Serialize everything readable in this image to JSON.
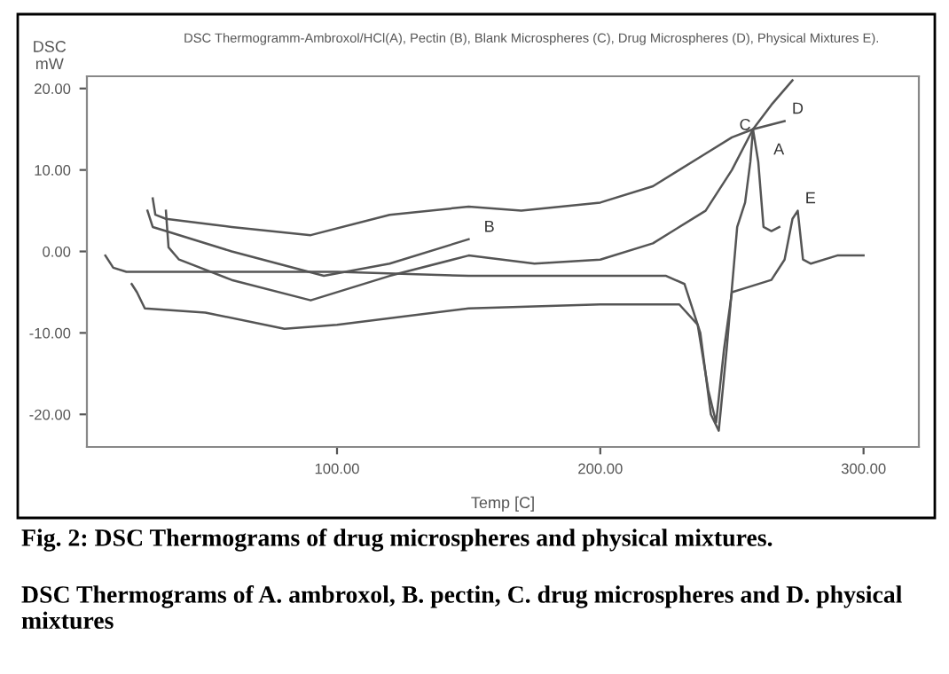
{
  "chart_data": {
    "type": "line",
    "title": "DSC Thermogramm-Ambroxol/HCl(A), Pectin (B), Blank Microspheres (C), Drug Microspheres (D), Physical Mixtures E).",
    "xlabel": "Temp [C]",
    "ylabel": "DSC\nmW",
    "xlim": [
      5,
      321
    ],
    "ylim": [
      -24,
      21.5
    ],
    "xticks": [
      {
        "value": 100,
        "label": "100.00"
      },
      {
        "value": 200,
        "label": "200.00"
      },
      {
        "value": 300,
        "label": "300.00"
      }
    ],
    "yticks": [
      {
        "value": -20,
        "label": "-20.00"
      },
      {
        "value": -10,
        "label": "-10.00"
      },
      {
        "value": 0,
        "label": "0.00"
      },
      {
        "value": 10,
        "label": "10.00"
      },
      {
        "value": 20,
        "label": "20.00"
      }
    ],
    "grid": false,
    "legend": false,
    "line_style": "solid",
    "marker": "none",
    "series": [
      {
        "color": "#555555",
        "x": [
          12,
          15,
          20,
          60,
          100,
          150,
          200,
          225,
          232,
          238,
          242,
          245,
          248,
          252,
          255,
          257,
          258,
          260,
          262,
          265,
          268
        ],
        "values": [
          -0.5,
          -2,
          -2.5,
          -2.5,
          -2.5,
          -3,
          -3,
          -3,
          -4,
          -10,
          -20,
          -22,
          -12,
          3,
          6,
          11,
          15,
          11,
          3,
          2.5,
          3
        ]
      },
      {
        "color": "#555555",
        "x": [
          28,
          30,
          35,
          60,
          95,
          120,
          150
        ],
        "values": [
          5,
          3,
          2.5,
          0,
          -3,
          -1.5,
          1.5
        ]
      },
      {
        "color": "#555555",
        "x": [
          35,
          36,
          40,
          60,
          90,
          120,
          150,
          175,
          200,
          220,
          240,
          250,
          258,
          265,
          273
        ],
        "values": [
          5,
          0.5,
          -1,
          -3.5,
          -6,
          -3,
          -0.5,
          -1.5,
          -1,
          1,
          5,
          10,
          15,
          18,
          21
        ]
      },
      {
        "color": "#555555",
        "x": [
          30,
          31,
          35,
          60,
          90,
          120,
          150,
          170,
          200,
          220,
          240,
          250,
          258,
          270
        ],
        "values": [
          6.5,
          4.5,
          4,
          3,
          2,
          4.5,
          5.5,
          5,
          6,
          8,
          12,
          14,
          15,
          16
        ]
      },
      {
        "color": "#555555",
        "x": [
          22,
          24,
          27,
          50,
          80,
          100,
          150,
          200,
          230,
          237,
          241,
          244,
          247,
          250,
          255,
          265,
          270,
          273,
          275,
          277,
          280,
          290,
          300
        ],
        "values": [
          -4,
          -5,
          -7,
          -7.5,
          -9.5,
          -9,
          -7,
          -6.5,
          -6.5,
          -9,
          -17,
          -21,
          -12,
          -5,
          -4.5,
          -3.5,
          -1,
          4,
          5,
          -1,
          -1.5,
          -0.5,
          -0.5
        ]
      }
    ],
    "annotations": [
      {
        "text": "A",
        "x": 263,
        "y": 11
      },
      {
        "text": "B",
        "x": 153,
        "y": 1.5
      },
      {
        "text": "C",
        "x": 250,
        "y": 14
      },
      {
        "text": "D",
        "x": 270,
        "y": 16
      },
      {
        "text": "E",
        "x": 275,
        "y": 5
      },
      "Fig. 2: DSC Thermograms of drug microspheres and physical mixtures.",
      "DSC Thermograms of A. ambroxol, B. pectin, C. drug microspheres and D. physical mixtures"
    ]
  }
}
